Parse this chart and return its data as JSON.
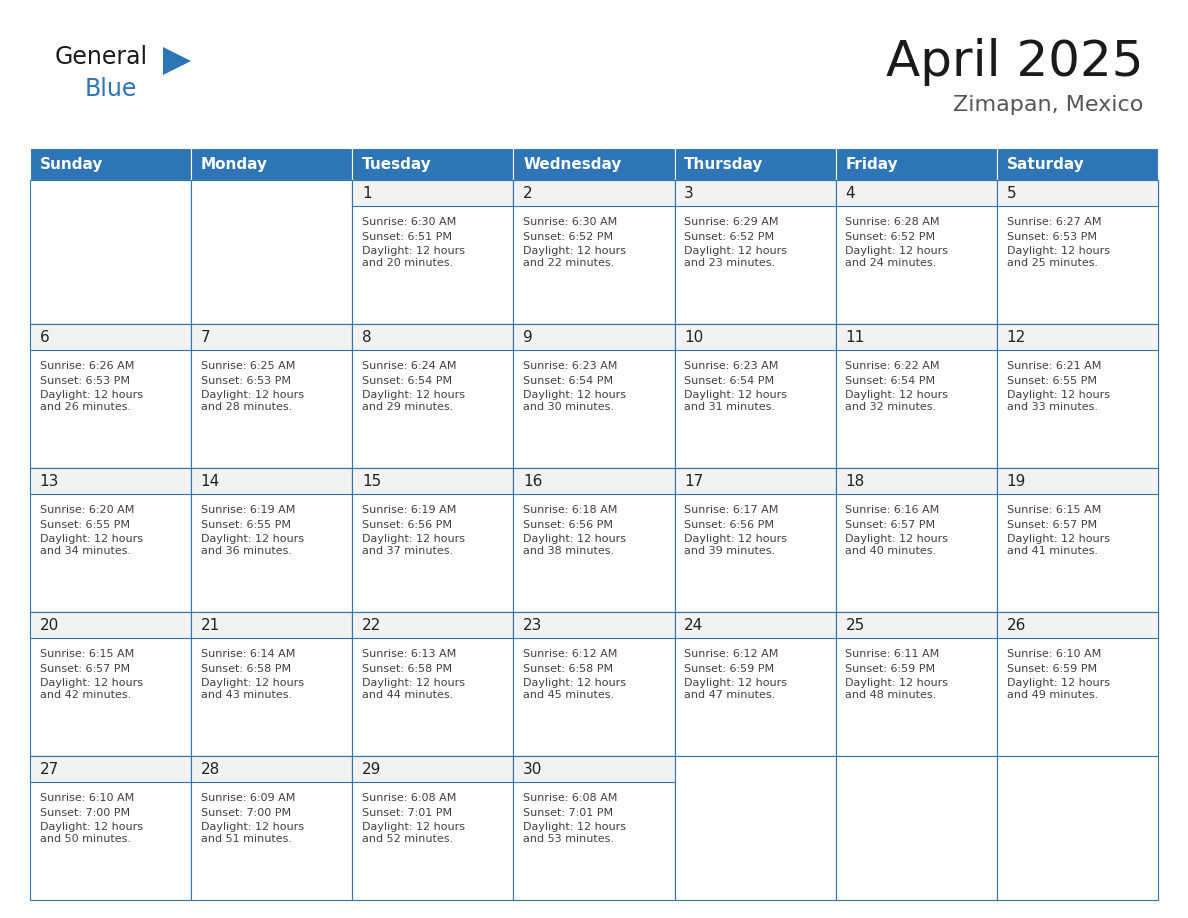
{
  "title": "April 2025",
  "subtitle": "Zimapan, Mexico",
  "header_color": "#2E75B6",
  "header_text_color": "#FFFFFF",
  "cell_bg_color": "#FFFFFF",
  "cell_day_bg_color": "#F2F2F2",
  "cell_border_color": "#2E75B6",
  "day_number_color": "#333333",
  "cell_text_color": "#404040",
  "days_of_week": [
    "Sunday",
    "Monday",
    "Tuesday",
    "Wednesday",
    "Thursday",
    "Friday",
    "Saturday"
  ],
  "calendar_data": [
    [
      {
        "day": "",
        "sunrise": "",
        "sunset": "",
        "daylight": ""
      },
      {
        "day": "",
        "sunrise": "",
        "sunset": "",
        "daylight": ""
      },
      {
        "day": "1",
        "sunrise": "Sunrise: 6:30 AM",
        "sunset": "Sunset: 6:51 PM",
        "daylight": "Daylight: 12 hours\nand 20 minutes."
      },
      {
        "day": "2",
        "sunrise": "Sunrise: 6:30 AM",
        "sunset": "Sunset: 6:52 PM",
        "daylight": "Daylight: 12 hours\nand 22 minutes."
      },
      {
        "day": "3",
        "sunrise": "Sunrise: 6:29 AM",
        "sunset": "Sunset: 6:52 PM",
        "daylight": "Daylight: 12 hours\nand 23 minutes."
      },
      {
        "day": "4",
        "sunrise": "Sunrise: 6:28 AM",
        "sunset": "Sunset: 6:52 PM",
        "daylight": "Daylight: 12 hours\nand 24 minutes."
      },
      {
        "day": "5",
        "sunrise": "Sunrise: 6:27 AM",
        "sunset": "Sunset: 6:53 PM",
        "daylight": "Daylight: 12 hours\nand 25 minutes."
      }
    ],
    [
      {
        "day": "6",
        "sunrise": "Sunrise: 6:26 AM",
        "sunset": "Sunset: 6:53 PM",
        "daylight": "Daylight: 12 hours\nand 26 minutes."
      },
      {
        "day": "7",
        "sunrise": "Sunrise: 6:25 AM",
        "sunset": "Sunset: 6:53 PM",
        "daylight": "Daylight: 12 hours\nand 28 minutes."
      },
      {
        "day": "8",
        "sunrise": "Sunrise: 6:24 AM",
        "sunset": "Sunset: 6:54 PM",
        "daylight": "Daylight: 12 hours\nand 29 minutes."
      },
      {
        "day": "9",
        "sunrise": "Sunrise: 6:23 AM",
        "sunset": "Sunset: 6:54 PM",
        "daylight": "Daylight: 12 hours\nand 30 minutes."
      },
      {
        "day": "10",
        "sunrise": "Sunrise: 6:23 AM",
        "sunset": "Sunset: 6:54 PM",
        "daylight": "Daylight: 12 hours\nand 31 minutes."
      },
      {
        "day": "11",
        "sunrise": "Sunrise: 6:22 AM",
        "sunset": "Sunset: 6:54 PM",
        "daylight": "Daylight: 12 hours\nand 32 minutes."
      },
      {
        "day": "12",
        "sunrise": "Sunrise: 6:21 AM",
        "sunset": "Sunset: 6:55 PM",
        "daylight": "Daylight: 12 hours\nand 33 minutes."
      }
    ],
    [
      {
        "day": "13",
        "sunrise": "Sunrise: 6:20 AM",
        "sunset": "Sunset: 6:55 PM",
        "daylight": "Daylight: 12 hours\nand 34 minutes."
      },
      {
        "day": "14",
        "sunrise": "Sunrise: 6:19 AM",
        "sunset": "Sunset: 6:55 PM",
        "daylight": "Daylight: 12 hours\nand 36 minutes."
      },
      {
        "day": "15",
        "sunrise": "Sunrise: 6:19 AM",
        "sunset": "Sunset: 6:56 PM",
        "daylight": "Daylight: 12 hours\nand 37 minutes."
      },
      {
        "day": "16",
        "sunrise": "Sunrise: 6:18 AM",
        "sunset": "Sunset: 6:56 PM",
        "daylight": "Daylight: 12 hours\nand 38 minutes."
      },
      {
        "day": "17",
        "sunrise": "Sunrise: 6:17 AM",
        "sunset": "Sunset: 6:56 PM",
        "daylight": "Daylight: 12 hours\nand 39 minutes."
      },
      {
        "day": "18",
        "sunrise": "Sunrise: 6:16 AM",
        "sunset": "Sunset: 6:57 PM",
        "daylight": "Daylight: 12 hours\nand 40 minutes."
      },
      {
        "day": "19",
        "sunrise": "Sunrise: 6:15 AM",
        "sunset": "Sunset: 6:57 PM",
        "daylight": "Daylight: 12 hours\nand 41 minutes."
      }
    ],
    [
      {
        "day": "20",
        "sunrise": "Sunrise: 6:15 AM",
        "sunset": "Sunset: 6:57 PM",
        "daylight": "Daylight: 12 hours\nand 42 minutes."
      },
      {
        "day": "21",
        "sunrise": "Sunrise: 6:14 AM",
        "sunset": "Sunset: 6:58 PM",
        "daylight": "Daylight: 12 hours\nand 43 minutes."
      },
      {
        "day": "22",
        "sunrise": "Sunrise: 6:13 AM",
        "sunset": "Sunset: 6:58 PM",
        "daylight": "Daylight: 12 hours\nand 44 minutes."
      },
      {
        "day": "23",
        "sunrise": "Sunrise: 6:12 AM",
        "sunset": "Sunset: 6:58 PM",
        "daylight": "Daylight: 12 hours\nand 45 minutes."
      },
      {
        "day": "24",
        "sunrise": "Sunrise: 6:12 AM",
        "sunset": "Sunset: 6:59 PM",
        "daylight": "Daylight: 12 hours\nand 47 minutes."
      },
      {
        "day": "25",
        "sunrise": "Sunrise: 6:11 AM",
        "sunset": "Sunset: 6:59 PM",
        "daylight": "Daylight: 12 hours\nand 48 minutes."
      },
      {
        "day": "26",
        "sunrise": "Sunrise: 6:10 AM",
        "sunset": "Sunset: 6:59 PM",
        "daylight": "Daylight: 12 hours\nand 49 minutes."
      }
    ],
    [
      {
        "day": "27",
        "sunrise": "Sunrise: 6:10 AM",
        "sunset": "Sunset: 7:00 PM",
        "daylight": "Daylight: 12 hours\nand 50 minutes."
      },
      {
        "day": "28",
        "sunrise": "Sunrise: 6:09 AM",
        "sunset": "Sunset: 7:00 PM",
        "daylight": "Daylight: 12 hours\nand 51 minutes."
      },
      {
        "day": "29",
        "sunrise": "Sunrise: 6:08 AM",
        "sunset": "Sunset: 7:01 PM",
        "daylight": "Daylight: 12 hours\nand 52 minutes."
      },
      {
        "day": "30",
        "sunrise": "Sunrise: 6:08 AM",
        "sunset": "Sunset: 7:01 PM",
        "daylight": "Daylight: 12 hours\nand 53 minutes."
      },
      {
        "day": "",
        "sunrise": "",
        "sunset": "",
        "daylight": ""
      },
      {
        "day": "",
        "sunrise": "",
        "sunset": "",
        "daylight": ""
      },
      {
        "day": "",
        "sunrise": "",
        "sunset": "",
        "daylight": ""
      }
    ]
  ],
  "logo_color_general": "#1a1a1a",
  "logo_color_blue": "#2E75B6",
  "logo_triangle_color": "#2E75B6",
  "fig_width": 11.88,
  "fig_height": 9.18,
  "dpi": 100
}
